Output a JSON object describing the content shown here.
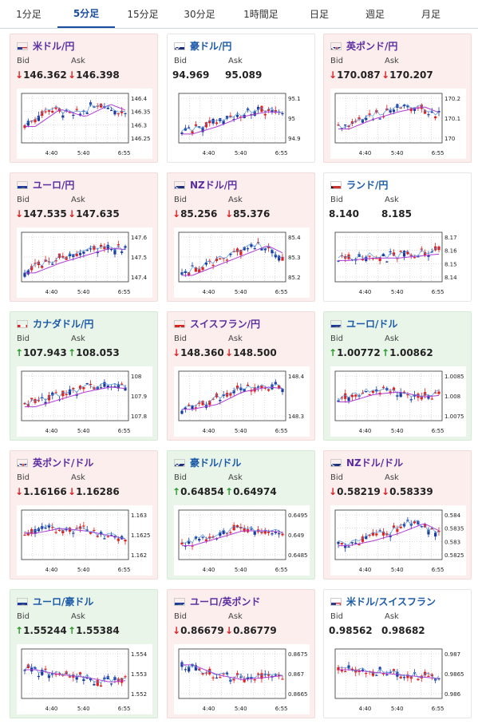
{
  "tabs": [
    {
      "label": "1分足",
      "active": false
    },
    {
      "label": "5分足",
      "active": true
    },
    {
      "label": "15分足",
      "active": false
    },
    {
      "label": "30分足",
      "active": false
    },
    {
      "label": "1時間足",
      "active": false
    },
    {
      "label": "日足",
      "active": false
    },
    {
      "label": "週足",
      "active": false
    },
    {
      "label": "月足",
      "active": false
    }
  ],
  "bid_label": "Bid",
  "ask_label": "Ask",
  "colors": {
    "up_candle": "#1a3aa0",
    "down_candle": "#e02020",
    "ma_line": "#b23ad8",
    "price_line": "#4a8fd8"
  },
  "x_ticks": [
    "4:40",
    "5:40",
    "6:55"
  ],
  "cards": [
    {
      "pair": "米ドル/円",
      "flag": "us",
      "status": "down",
      "bid": "146.362",
      "ask": "146.398",
      "bid_dir": "down",
      "ask_dir": "down",
      "y_ticks": [
        "146.4",
        "146.35",
        "146.3",
        "146.25"
      ],
      "trend": [
        0.35,
        0.7,
        0.55,
        0.8,
        0.6
      ]
    },
    {
      "pair": "豪ドル/円",
      "flag": "au",
      "status": "flat",
      "bid": "94.969",
      "ask": "95.089",
      "bid_dir": "none",
      "ask_dir": "none",
      "y_ticks": [
        "95.1",
        "95",
        "94.9"
      ],
      "trend": [
        0.2,
        0.35,
        0.55,
        0.65,
        0.62
      ]
    },
    {
      "pair": "英ポンド/円",
      "flag": "gb",
      "status": "down",
      "bid": "170.087",
      "ask": "170.207",
      "bid_dir": "down",
      "ask_dir": "down",
      "y_ticks": [
        "170.2",
        "170.1",
        "170"
      ],
      "trend": [
        0.3,
        0.5,
        0.65,
        0.75,
        0.55
      ]
    },
    {
      "pair": "ユーロ/円",
      "flag": "eu",
      "status": "down",
      "bid": "147.535",
      "ask": "147.635",
      "bid_dir": "down",
      "ask_dir": "down",
      "y_ticks": [
        "147.6",
        "147.5",
        "147.4"
      ],
      "trend": [
        0.2,
        0.4,
        0.55,
        0.7,
        0.65
      ]
    },
    {
      "pair": "NZドル/円",
      "flag": "nz",
      "status": "down",
      "bid": "85.256",
      "ask": "85.376",
      "bid_dir": "down",
      "ask_dir": "down",
      "y_ticks": [
        "85.4",
        "85.3",
        "85.2"
      ],
      "trend": [
        0.15,
        0.35,
        0.55,
        0.75,
        0.5
      ]
    },
    {
      "pair": "ランド/円",
      "flag": "za",
      "status": "flat",
      "bid": "8.140",
      "ask": "8.185",
      "bid_dir": "none",
      "ask_dir": "none",
      "y_ticks": [
        "8.17",
        "8.16",
        "8.15",
        "8.14"
      ],
      "trend": [
        0.45,
        0.5,
        0.5,
        0.55,
        0.6
      ]
    },
    {
      "pair": "カナダドル/円",
      "flag": "ca",
      "status": "up",
      "bid": "107.943",
      "ask": "108.053",
      "bid_dir": "up",
      "ask_dir": "up",
      "y_ticks": [
        "108",
        "107.9",
        "107.8"
      ],
      "trend": [
        0.3,
        0.45,
        0.6,
        0.7,
        0.65
      ]
    },
    {
      "pair": "スイスフラン/円",
      "flag": "ch",
      "status": "down",
      "bid": "148.360",
      "ask": "148.500",
      "bid_dir": "down",
      "ask_dir": "down",
      "y_ticks": [
        "148.4",
        "148.3"
      ],
      "trend": [
        0.25,
        0.35,
        0.6,
        0.7,
        0.65
      ]
    },
    {
      "pair": "ユーロ/ドル",
      "flag": "euus",
      "status": "up",
      "bid": "1.00772",
      "ask": "1.00862",
      "bid_dir": "up",
      "ask_dir": "up",
      "y_ticks": [
        "1.0085",
        "1.008",
        "1.0075"
      ],
      "trend": [
        0.4,
        0.55,
        0.6,
        0.5,
        0.55
      ]
    },
    {
      "pair": "英ポンド/ドル",
      "flag": "gbus",
      "status": "down",
      "bid": "1.16166",
      "ask": "1.16286",
      "bid_dir": "down",
      "ask_dir": "down",
      "y_ticks": [
        "1.163",
        "1.1625",
        "1.162"
      ],
      "trend": [
        0.55,
        0.65,
        0.6,
        0.5,
        0.4
      ]
    },
    {
      "pair": "豪ドル/ドル",
      "flag": "auus",
      "status": "up",
      "bid": "0.64854",
      "ask": "0.64974",
      "bid_dir": "up",
      "ask_dir": "up",
      "y_ticks": [
        "0.6495",
        "0.649",
        "0.6485"
      ],
      "trend": [
        0.3,
        0.45,
        0.6,
        0.6,
        0.55
      ]
    },
    {
      "pair": "NZドル/ドル",
      "flag": "nzus",
      "status": "down",
      "bid": "0.58219",
      "ask": "0.58339",
      "bid_dir": "down",
      "ask_dir": "down",
      "y_ticks": [
        "0.584",
        "0.5835",
        "0.583",
        "0.5825"
      ],
      "trend": [
        0.3,
        0.4,
        0.55,
        0.75,
        0.5
      ]
    },
    {
      "pair": "ユーロ/豪ドル",
      "flag": "euau",
      "status": "up",
      "bid": "1.55244",
      "ask": "1.55384",
      "bid_dir": "up",
      "ask_dir": "up",
      "y_ticks": [
        "1.554",
        "1.553",
        "1.552"
      ],
      "trend": [
        0.6,
        0.5,
        0.45,
        0.35,
        0.4
      ]
    },
    {
      "pair": "ユーロ/英ポンド",
      "flag": "eugb",
      "status": "down",
      "bid": "0.86679",
      "ask": "0.86779",
      "bid_dir": "down",
      "ask_dir": "down",
      "y_ticks": [
        "0.8675",
        "0.867",
        "0.8665"
      ],
      "trend": [
        0.7,
        0.5,
        0.4,
        0.45,
        0.5
      ]
    },
    {
      "pair": "米ドル/スイスフラン",
      "flag": "usch",
      "status": "flat",
      "bid": "0.98562",
      "ask": "0.98682",
      "bid_dir": "none",
      "ask_dir": "none",
      "y_ticks": [
        "0.987",
        "0.9865",
        "0.986"
      ],
      "trend": [
        0.6,
        0.55,
        0.5,
        0.45,
        0.4
      ]
    }
  ]
}
